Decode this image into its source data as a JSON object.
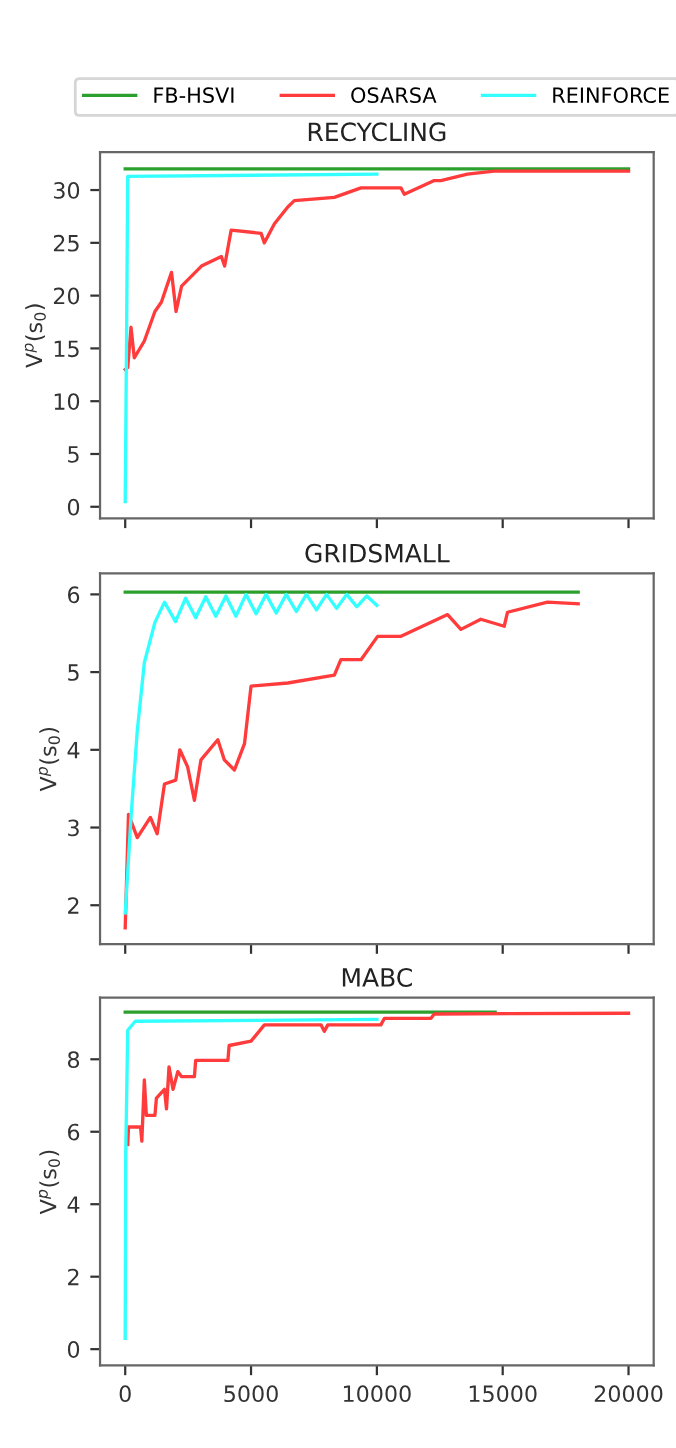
{
  "chart_data": [
    {
      "type": "line",
      "title": "RECYCLING",
      "ylabel": "V$^{p}$(s$_{0}$)",
      "xlim": [
        -1000,
        21000
      ],
      "xticks": [
        0,
        5000,
        10000,
        15000,
        20000
      ],
      "ylim": [
        -1.1,
        33.6
      ],
      "yticks": [
        0,
        5,
        10,
        15,
        20,
        25,
        30
      ],
      "tick_labels": "y",
      "legend": "top",
      "series": [
        {
          "name": "FB-HSVI",
          "color": "#2ca02c",
          "x": [
            0,
            20000
          ],
          "values": [
            32,
            32
          ]
        },
        {
          "name": "OSARSA",
          "color": "#ff3b3b",
          "x": [
            0,
            100,
            230,
            360,
            760,
            1180,
            1440,
            1840,
            2020,
            2240,
            3030,
            3820,
            3950,
            4210,
            5400,
            5530,
            5930,
            6460,
            6720,
            8310,
            9370,
            10960,
            11090,
            12280,
            12540,
            13600,
            14660,
            20000
          ],
          "values": [
            13,
            13.2,
            17,
            14.1,
            15.7,
            18.5,
            19.4,
            22.2,
            18.5,
            20.9,
            22.8,
            23.7,
            22.8,
            26.2,
            25.9,
            25,
            26.8,
            28.4,
            29,
            29.3,
            30.2,
            30.2,
            29.6,
            30.9,
            30.9,
            31.5,
            31.8,
            31.8
          ]
        },
        {
          "name": "REINFORCE",
          "color": "#33ffff",
          "x": [
            0,
            50,
            100,
            10000
          ],
          "values": [
            0.5,
            15,
            31.3,
            31.5
          ]
        }
      ]
    },
    {
      "type": "line",
      "title": "GRIDSMALL",
      "ylabel": "V$^{p}$(s$_{0}$)",
      "xlim": [
        -1000,
        21000
      ],
      "xticks": [
        0,
        5000,
        10000,
        15000,
        20000
      ],
      "ylim": [
        1.5,
        6.27
      ],
      "yticks": [
        2,
        3,
        4,
        5,
        6
      ],
      "tick_labels": "y",
      "series": [
        {
          "color": "#2ca02c",
          "x": [
            0,
            18000
          ],
          "values": [
            6.03,
            6.03
          ]
        },
        {
          "color": "#ff3b3b",
          "x": [
            0,
            130,
            480,
            1000,
            1270,
            1560,
            2010,
            2170,
            2480,
            2750,
            3010,
            3680,
            3940,
            4340,
            4740,
            5000,
            6460,
            8310,
            8570,
            9370,
            10030,
            10960,
            12810,
            13340,
            14130,
            15060,
            15190,
            16780,
            18000
          ],
          "values": [
            1.71,
            3.17,
            2.87,
            3.13,
            2.92,
            3.56,
            3.61,
            4.0,
            3.78,
            3.35,
            3.87,
            4.13,
            3.87,
            3.74,
            4.08,
            4.82,
            4.86,
            4.96,
            5.16,
            5.16,
            5.46,
            5.46,
            5.74,
            5.55,
            5.68,
            5.59,
            5.77,
            5.9,
            5.88
          ]
        },
        {
          "color": "#33ffff",
          "x": [
            0,
            230,
            480,
            760,
            1180,
            1560,
            2000,
            2400,
            2800,
            3200,
            3600,
            4000,
            4400,
            4800,
            5200,
            5600,
            6000,
            6400,
            6800,
            7200,
            7600,
            8000,
            8400,
            8800,
            9200,
            9600,
            10000
          ],
          "values": [
            1.9,
            3.13,
            4.25,
            5.12,
            5.64,
            5.9,
            5.65,
            5.95,
            5.7,
            5.97,
            5.72,
            5.98,
            5.72,
            6.0,
            5.75,
            6.0,
            5.76,
            6.0,
            5.78,
            6.0,
            5.8,
            6.0,
            5.82,
            6.0,
            5.84,
            5.98,
            5.86
          ]
        }
      ]
    },
    {
      "type": "line",
      "title": "MABC",
      "ylabel": "V$^{p}$(s$_{0}$)",
      "xlim": [
        -1000,
        21000
      ],
      "xticks": [
        0,
        5000,
        10000,
        15000,
        20000
      ],
      "ylim": [
        -0.45,
        9.7
      ],
      "yticks": [
        0,
        2,
        4,
        6,
        8
      ],
      "series": [
        {
          "color": "#2ca02c",
          "x": [
            0,
            14700
          ],
          "values": [
            9.3,
            9.3
          ]
        },
        {
          "color": "#ff3b3b",
          "x": [
            100,
            130,
            610,
            660,
            760,
            840,
            1180,
            1240,
            1560,
            1640,
            1740,
            1900,
            2090,
            2240,
            2750,
            2800,
            4080,
            4130,
            5000,
            5530,
            7780,
            7910,
            8050,
            10160,
            10300,
            12150,
            12280,
            20000
          ],
          "values": [
            5.65,
            6.13,
            6.13,
            5.74,
            7.43,
            6.45,
            6.45,
            6.93,
            7.17,
            6.63,
            7.79,
            7.17,
            7.66,
            7.52,
            7.52,
            7.97,
            7.97,
            8.38,
            8.5,
            8.95,
            8.95,
            8.77,
            8.95,
            8.95,
            9.13,
            9.13,
            9.25,
            9.27
          ]
        },
        {
          "color": "#33ffff",
          "x": [
            0,
            20,
            100,
            400,
            10000
          ],
          "values": [
            0.3,
            5.4,
            8.8,
            9.05,
            9.1
          ]
        }
      ]
    }
  ]
}
